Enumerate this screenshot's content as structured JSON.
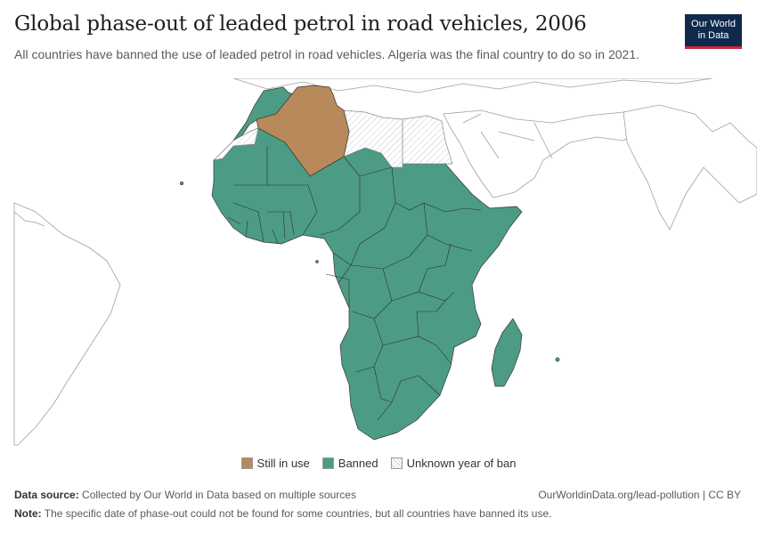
{
  "header": {
    "title": "Global phase-out of leaded petrol in road vehicles, 2006",
    "subtitle": "All countries have banned the use of leaded petrol in road vehicles. Algeria was the final country to do so in 2021."
  },
  "logo": {
    "line1": "Our World",
    "line2": "in Data"
  },
  "map": {
    "region": "Africa",
    "colors": {
      "still_in_use": "#b8895a",
      "banned": "#4c9c85",
      "unknown": "#ffffff",
      "border": "#555555",
      "outline": "#9a9a9a"
    },
    "still_in_use": [
      "Algeria"
    ],
    "unknown": [
      "Libya",
      "Egypt",
      "Western Sahara"
    ]
  },
  "legend": {
    "items": [
      {
        "label": "Still in use",
        "color": "#b8895a"
      },
      {
        "label": "Banned",
        "color": "#4c9c85"
      },
      {
        "label": "Unknown year of ban",
        "color": "hatched"
      }
    ]
  },
  "footer": {
    "source_label": "Data source:",
    "source_text": "Collected by Our World in Data based on multiple sources",
    "link": "OurWorldinData.org/lead-pollution | CC BY",
    "note_label": "Note:",
    "note_text": "The specific date of phase-out could not be found for some countries, but all countries have banned its use."
  }
}
